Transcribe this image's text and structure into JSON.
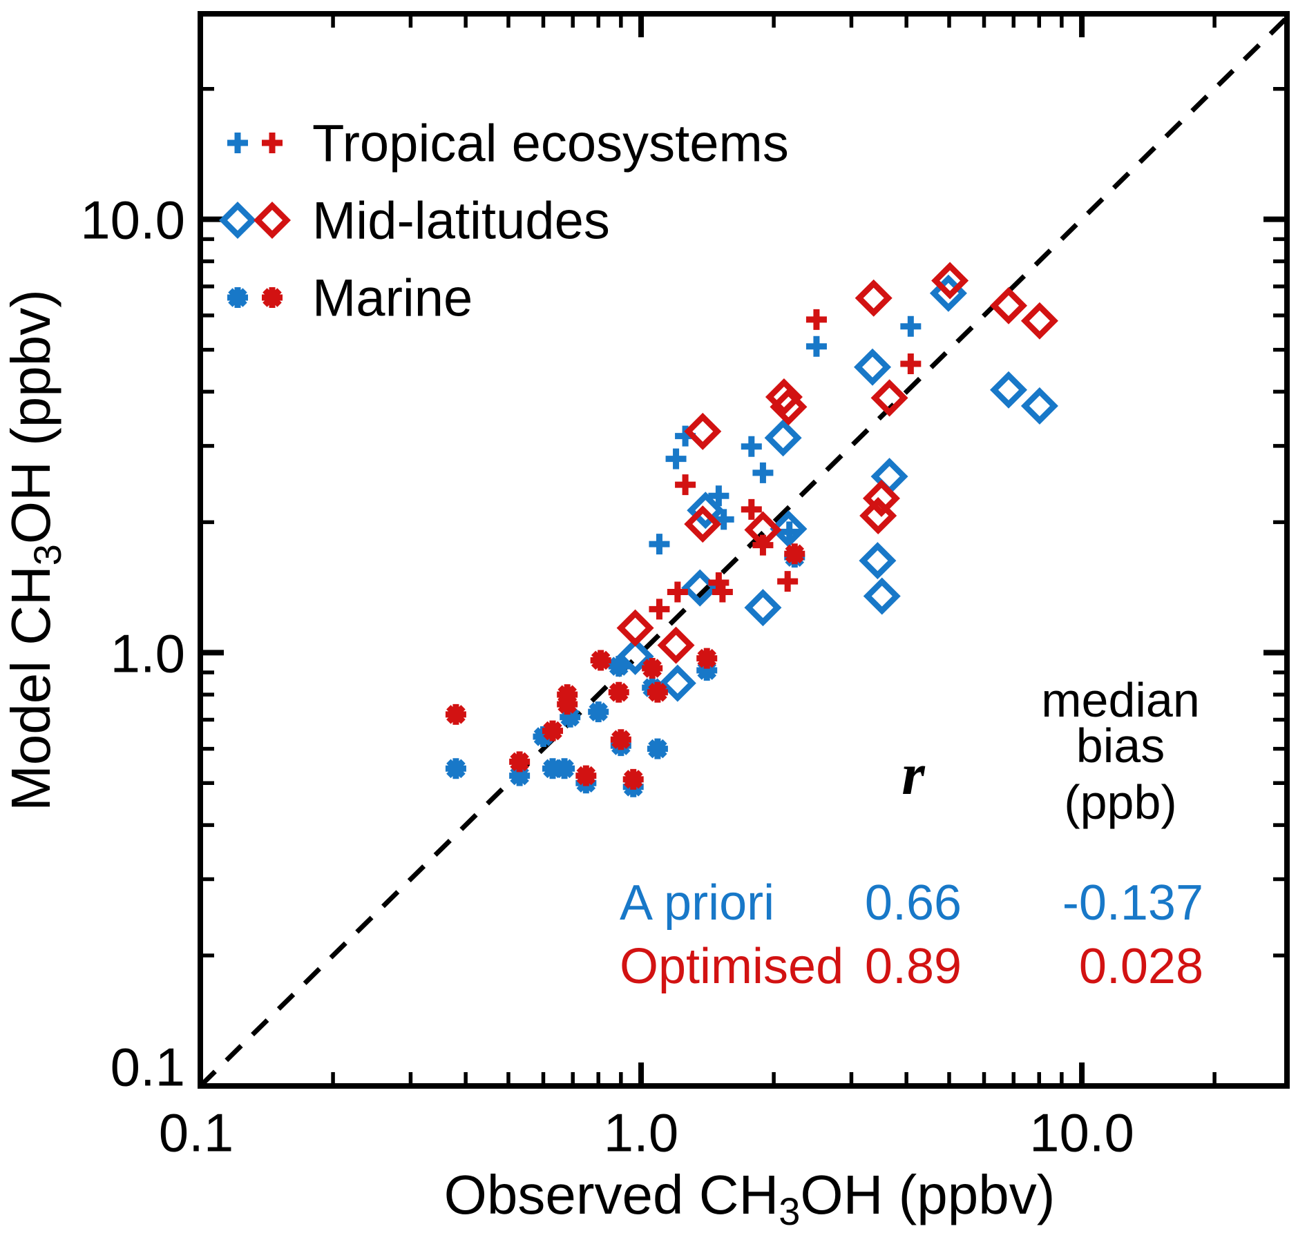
{
  "colors": {
    "a_priori_blue": "#1878C8",
    "optimised_red": "#D21212",
    "axis_black": "#000000"
  },
  "chart_data": {
    "type": "scatter",
    "log_axes": true,
    "xlabel": {
      "pre": "Observed CH",
      "sub": "3",
      "post": "OH (ppbv)"
    },
    "ylabel": {
      "pre": "Model CH",
      "sub": "3",
      "post": "OH (ppbv)"
    },
    "xlim": [
      0.1,
      29.2
    ],
    "ylim": [
      0.1,
      29.8
    ],
    "x_major_ticks": [
      0.1,
      1,
      10
    ],
    "x_major_tick_labels": [
      "0.1",
      "1.0",
      "10.0"
    ],
    "y_major_ticks": [
      0.1,
      1,
      10
    ],
    "y_major_tick_labels": [
      "0.1",
      "1.0",
      "10.0"
    ],
    "minor_ticks": [
      0.2,
      0.3,
      0.4,
      0.5,
      0.6,
      0.7,
      0.8,
      0.9,
      2,
      3,
      4,
      5,
      6,
      7,
      8,
      9,
      20
    ],
    "identity_line": true,
    "legend": {
      "items": [
        {
          "label": "Tropical ecosystems",
          "marker": "plus"
        },
        {
          "label": "Mid-latitudes",
          "marker": "diamond"
        },
        {
          "label": "Marine",
          "marker": "asterisk"
        }
      ]
    },
    "stats": {
      "col_r_header": "r",
      "col_bias_header": [
        "median",
        "bias",
        "(ppb)"
      ],
      "rows": [
        {
          "label": "A priori",
          "r": "0.66",
          "bias": "-0.137",
          "variant": "a_priori"
        },
        {
          "label": "Optimised",
          "r": "0.89",
          "bias": "0.028",
          "variant": "optimised"
        }
      ]
    },
    "series": [
      {
        "id": "tropical-a-priori",
        "group": "Tropical ecosystems",
        "variant": "a_priori",
        "marker": "plus",
        "color": "#1878C8",
        "points": [
          [
            1.1,
            1.78
          ],
          [
            4.09,
            5.66
          ],
          [
            2.5,
            5.09
          ],
          [
            1.26,
            3.16
          ],
          [
            1.2,
            2.8
          ],
          [
            1.78,
            2.99
          ],
          [
            1.89,
            2.6
          ],
          [
            1.5,
            2.3
          ],
          [
            1.54,
            2.03
          ],
          [
            2.17,
            1.9
          ]
        ]
      },
      {
        "id": "midlat-a-priori",
        "group": "Mid-latitudes",
        "variant": "a_priori",
        "marker": "diamond",
        "color": "#1878C8",
        "points": [
          [
            0.97,
            0.98
          ],
          [
            1.21,
            0.85
          ],
          [
            1.36,
            1.41
          ],
          [
            1.89,
            1.27
          ],
          [
            2.1,
            3.13
          ],
          [
            3.35,
            4.56
          ],
          [
            3.66,
            2.55
          ],
          [
            3.44,
            1.63
          ],
          [
            3.52,
            1.35
          ],
          [
            4.98,
            6.75
          ],
          [
            6.82,
            4.04
          ],
          [
            8.02,
            3.71
          ],
          [
            2.16,
            1.93
          ],
          [
            1.4,
            2.13
          ]
        ]
      },
      {
        "id": "marine-a-priori",
        "group": "Marine",
        "variant": "a_priori",
        "marker": "asterisk",
        "color": "#1878C8",
        "points": [
          [
            0.38,
            0.54
          ],
          [
            0.53,
            0.52
          ],
          [
            0.6,
            0.64
          ],
          [
            0.63,
            0.54
          ],
          [
            0.67,
            0.54
          ],
          [
            0.69,
            0.71
          ],
          [
            0.75,
            0.5
          ],
          [
            0.8,
            0.73
          ],
          [
            0.89,
            0.93
          ],
          [
            0.9,
            0.61
          ],
          [
            0.96,
            0.49
          ],
          [
            1.06,
            0.83
          ],
          [
            1.09,
            0.6
          ],
          [
            1.41,
            0.91
          ],
          [
            2.23,
            1.66
          ]
        ]
      },
      {
        "id": "tropical-optimised",
        "group": "Tropical ecosystems",
        "variant": "optimised",
        "marker": "plus",
        "color": "#D21212",
        "points": [
          [
            2.5,
            5.87
          ],
          [
            4.09,
            4.64
          ],
          [
            1.26,
            2.44
          ],
          [
            1.78,
            2.14
          ],
          [
            1.5,
            1.45
          ],
          [
            1.53,
            1.38
          ],
          [
            1.21,
            1.38
          ],
          [
            1.1,
            1.26
          ],
          [
            2.15,
            1.46
          ],
          [
            1.89,
            1.77
          ]
        ]
      },
      {
        "id": "midlat-optimised",
        "group": "Mid-latitudes",
        "variant": "optimised",
        "marker": "diamond",
        "color": "#D21212",
        "points": [
          [
            0.97,
            1.14
          ],
          [
            1.2,
            1.04
          ],
          [
            1.38,
            3.24
          ],
          [
            1.38,
            1.98
          ],
          [
            1.89,
            1.92
          ],
          [
            2.11,
            3.89
          ],
          [
            2.16,
            3.69
          ],
          [
            3.37,
            6.58
          ],
          [
            3.66,
            3.87
          ],
          [
            3.45,
            2.07
          ],
          [
            3.51,
            2.27
          ],
          [
            5.02,
            7.22
          ],
          [
            6.82,
            6.32
          ],
          [
            8.02,
            5.83
          ]
        ]
      },
      {
        "id": "marine-optimised",
        "group": "Marine",
        "variant": "optimised",
        "marker": "asterisk",
        "color": "#D21212",
        "points": [
          [
            0.38,
            0.72
          ],
          [
            0.53,
            0.56
          ],
          [
            0.63,
            0.66
          ],
          [
            0.68,
            0.8
          ],
          [
            0.68,
            0.76
          ],
          [
            0.75,
            0.52
          ],
          [
            0.81,
            0.96
          ],
          [
            0.89,
            0.81
          ],
          [
            0.9,
            0.63
          ],
          [
            0.96,
            0.51
          ],
          [
            1.06,
            0.92
          ],
          [
            1.09,
            0.81
          ],
          [
            1.41,
            0.97
          ],
          [
            2.23,
            1.69
          ]
        ]
      }
    ]
  }
}
